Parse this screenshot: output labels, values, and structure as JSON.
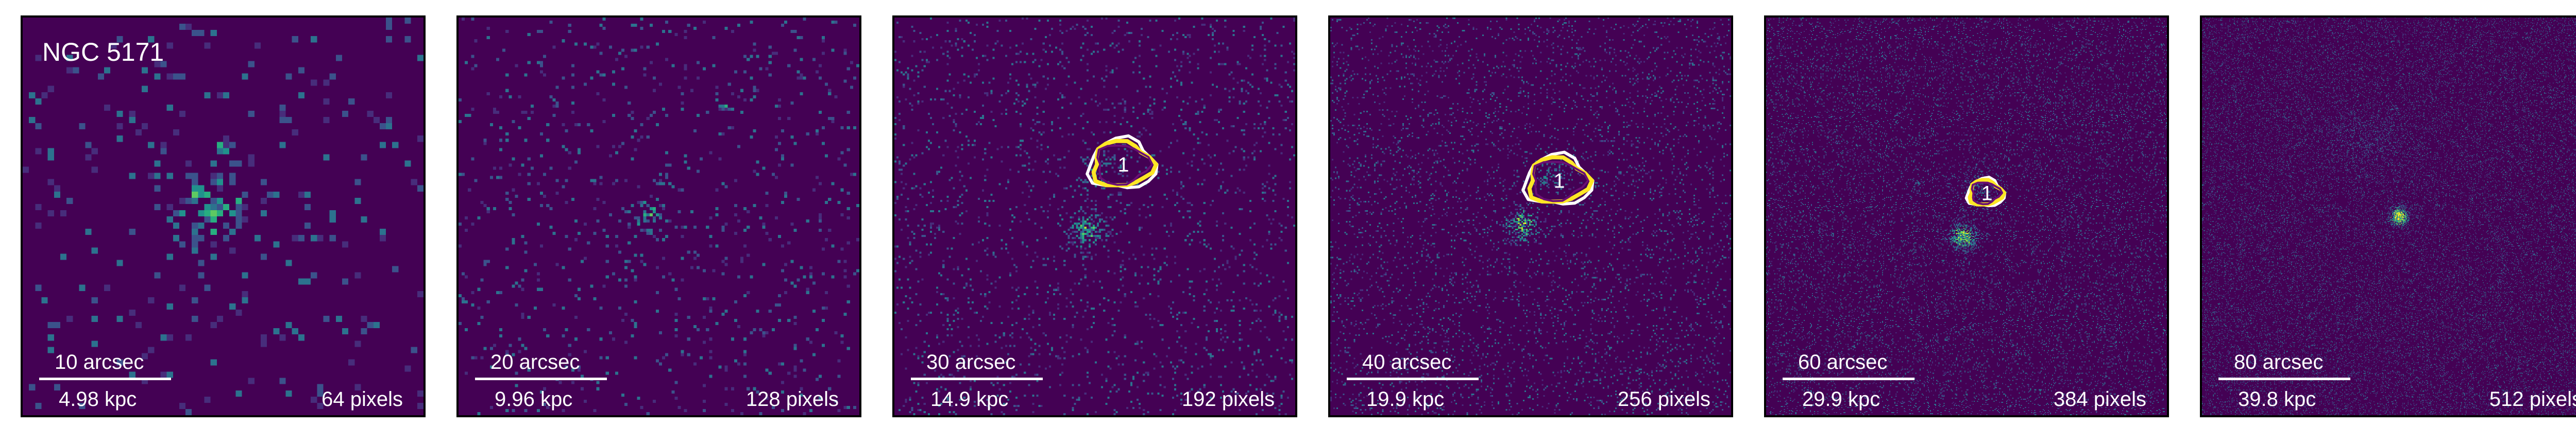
{
  "figure": {
    "galaxy_name": "NGC 5171",
    "colormap": [
      "#440154",
      "#472d7b",
      "#3b528b",
      "#2c728e",
      "#21918c",
      "#28ae80",
      "#5ec962",
      "#addc30",
      "#fde725"
    ],
    "contour_colors": {
      "outer": "#ffffff",
      "middle": "#fde725",
      "inner": "#6a0f74"
    },
    "panels": [
      {
        "arcsec": "10 arcsec",
        "kpc": "4.98 kpc",
        "pixels": "64 pixels",
        "grid": 64,
        "density": 0.06,
        "has_region": false,
        "region_label": ""
      },
      {
        "arcsec": "20 arcsec",
        "kpc": "9.96 kpc",
        "pixels": "128 pixels",
        "grid": 128,
        "density": 0.05,
        "has_region": false,
        "region_label": ""
      },
      {
        "arcsec": "30 arcsec",
        "kpc": "14.9 kpc",
        "pixels": "192 pixels",
        "grid": 192,
        "density": 0.055,
        "has_region": true,
        "region_label": "1"
      },
      {
        "arcsec": "40 arcsec",
        "kpc": "19.9 kpc",
        "pixels": "256 pixels",
        "grid": 256,
        "density": 0.07,
        "has_region": true,
        "region_label": "1"
      },
      {
        "arcsec": "60 arcsec",
        "kpc": "29.9 kpc",
        "pixels": "384 pixels",
        "grid": 384,
        "density": 0.1,
        "has_region": true,
        "region_label": "1"
      },
      {
        "arcsec": "80 arcsec",
        "kpc": "39.8 kpc",
        "pixels": "512 pixels",
        "grid": 512,
        "density": 0.12,
        "has_region": false,
        "region_label": ""
      }
    ]
  }
}
